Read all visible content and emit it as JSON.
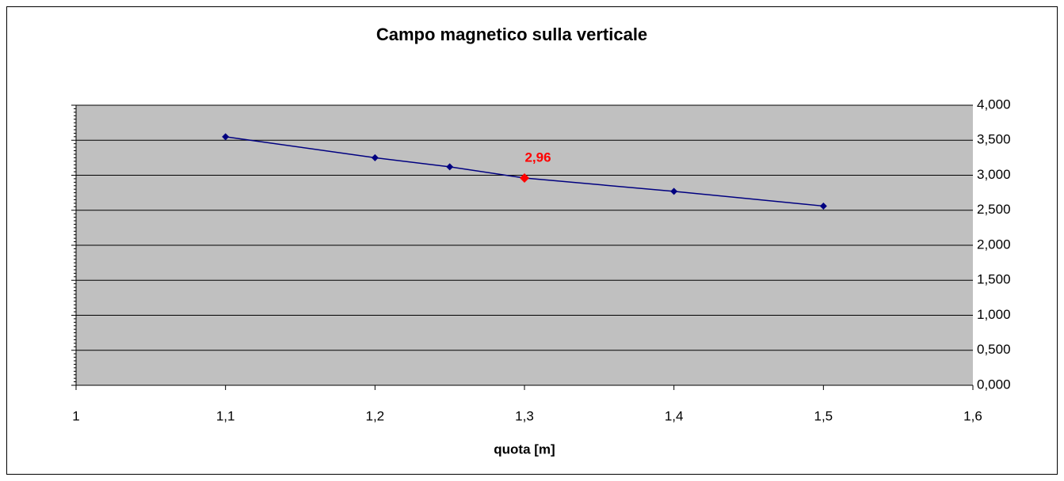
{
  "chart_data": {
    "type": "line",
    "title": "Campo magnetico sulla verticale",
    "x_label": "quota [m]",
    "x": [
      1.1,
      1.2,
      1.25,
      1.3,
      1.4,
      1.5
    ],
    "series": [
      {
        "color": "#000080",
        "values": [
          3.55,
          3.25,
          3.12,
          2.96,
          2.77,
          2.56
        ],
        "value_labels": [
          null,
          null,
          null,
          "2,96",
          null,
          null
        ]
      }
    ],
    "highlight_color": "#ff0000",
    "xlim": [
      1,
      1.6
    ],
    "xticks": [
      1,
      {
        "value": 1.1,
        "label": "1,1"
      },
      {
        "value": 1.2,
        "label": "1,2"
      },
      {
        "value": 1.3,
        "label": "1,3"
      },
      {
        "value": 1.4,
        "label": "1,4"
      },
      {
        "value": 1.5,
        "label": "1,5"
      },
      {
        "value": 1.6,
        "label": "1,6"
      }
    ],
    "ylim": [
      0,
      4
    ],
    "yticks": [
      {
        "value": 0,
        "label": "0,000"
      },
      {
        "value": 0.5,
        "label": "0,500"
      },
      {
        "value": 1,
        "label": "1,000"
      },
      {
        "value": 1.5,
        "label": "1,500"
      },
      {
        "value": 2,
        "label": "2,000"
      },
      {
        "value": 2.5,
        "label": "2,500"
      },
      {
        "value": 3,
        "label": "3,000"
      },
      {
        "value": 3.5,
        "label": "3,500"
      },
      {
        "value": 4,
        "label": "4,000"
      }
    ],
    "plot_background": "#c0c0c0",
    "grid": true
  }
}
